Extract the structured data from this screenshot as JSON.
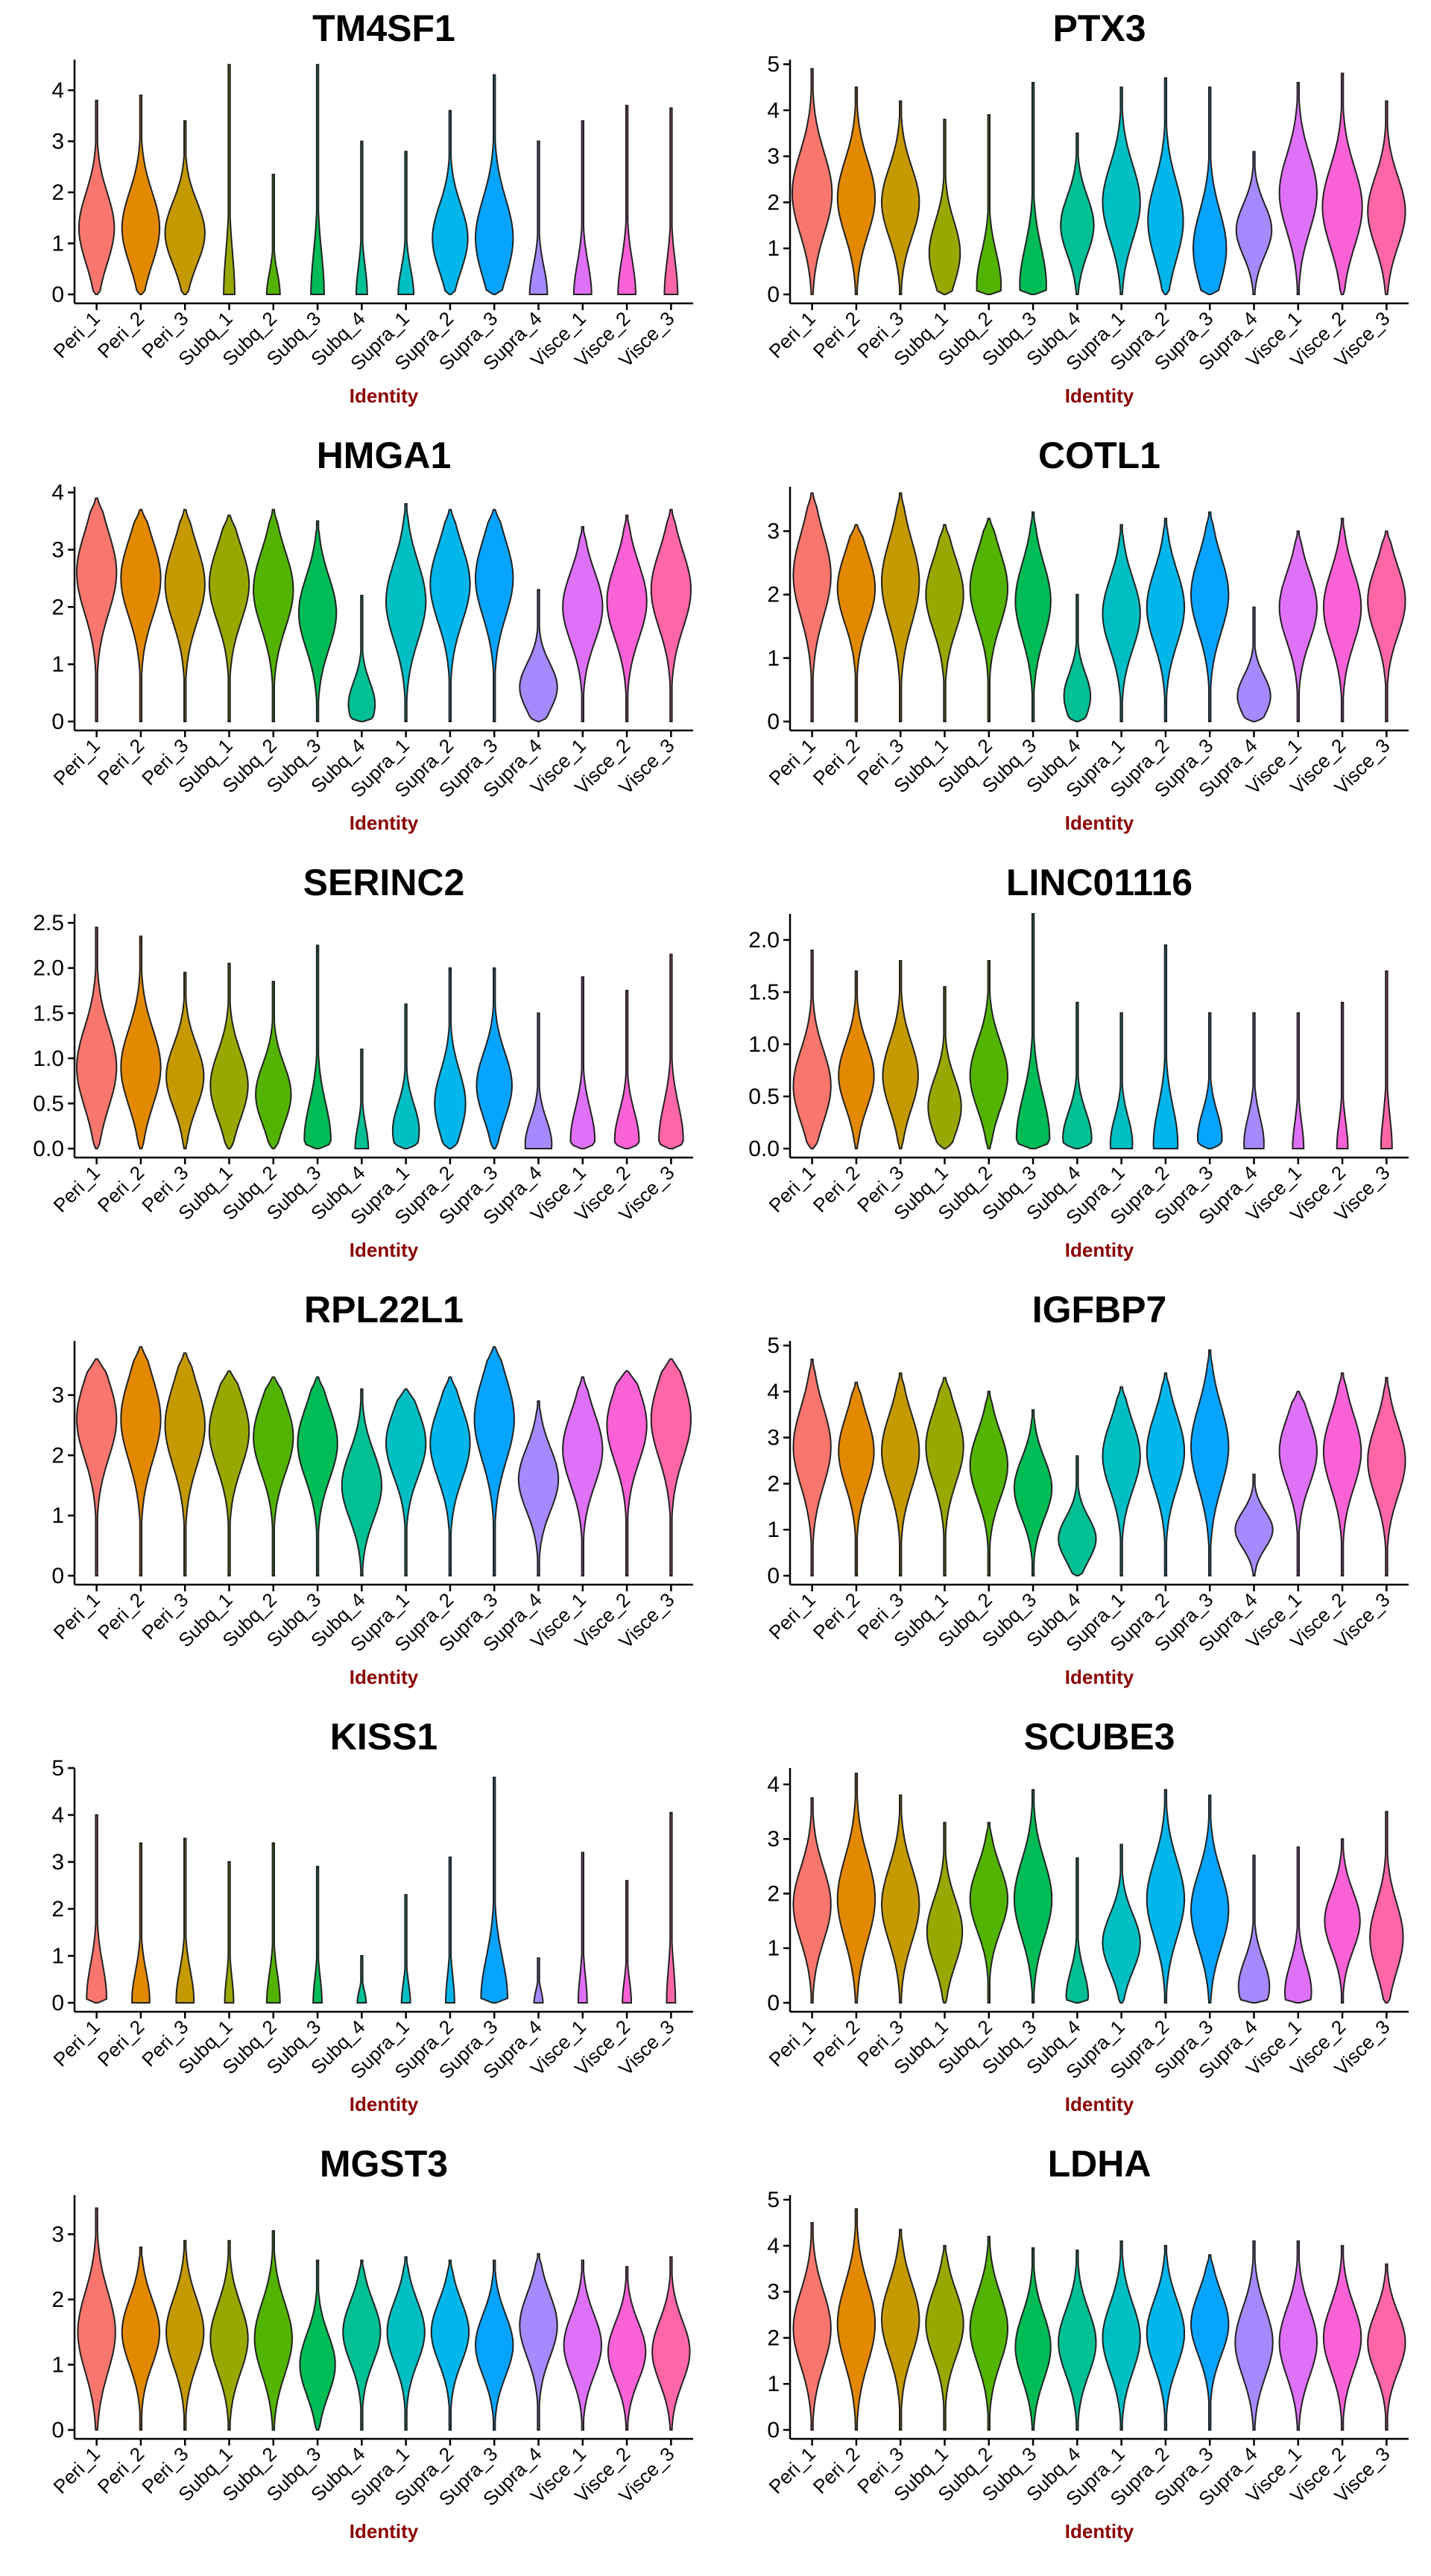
{
  "chart_data": [
    {
      "type": "violin",
      "title": "TM4SF1",
      "xlabel": "Identity",
      "ylim": [
        0,
        4.6
      ],
      "yticks": [
        0,
        1,
        2,
        3,
        4
      ],
      "categories": [
        "Peri_1",
        "Peri_2",
        "Peri_3",
        "Subq_1",
        "Subq_2",
        "Subq_3",
        "Subq_4",
        "Supra_1",
        "Supra_2",
        "Supra_3",
        "Supra_4",
        "Visce_1",
        "Visce_2",
        "Visce_3"
      ],
      "max": [
        3.8,
        3.9,
        3.4,
        4.5,
        2.35,
        4.5,
        3.0,
        2.8,
        3.6,
        4.3,
        3.0,
        3.4,
        3.7,
        3.65
      ],
      "mode": [
        1.3,
        1.3,
        1.2,
        0,
        0,
        0,
        0,
        0,
        1.1,
        1.1,
        0,
        0,
        0,
        0
      ],
      "width": [
        0.8,
        0.85,
        0.9,
        0.25,
        0.3,
        0.3,
        0.25,
        0.35,
        0.8,
        0.85,
        0.4,
        0.4,
        0.4,
        0.3
      ]
    },
    {
      "type": "violin",
      "title": "PTX3",
      "xlabel": "Identity",
      "ylim": [
        0,
        5.1
      ],
      "yticks": [
        0,
        1,
        2,
        3,
        4,
        5
      ],
      "categories": [
        "Peri_1",
        "Peri_2",
        "Peri_3",
        "Subq_1",
        "Subq_2",
        "Subq_3",
        "Subq_4",
        "Supra_1",
        "Supra_2",
        "Supra_3",
        "Supra_4",
        "Visce_1",
        "Visce_2",
        "Visce_3"
      ],
      "max": [
        4.9,
        4.5,
        4.2,
        3.8,
        3.9,
        4.6,
        3.5,
        4.5,
        4.7,
        4.5,
        3.1,
        4.6,
        4.8,
        4.2
      ],
      "mode": [
        2.2,
        2.1,
        2.0,
        0.9,
        0.2,
        0.2,
        1.5,
        2.0,
        1.6,
        1.0,
        1.4,
        2.2,
        1.9,
        1.8
      ],
      "width": [
        0.9,
        0.85,
        0.85,
        0.7,
        0.55,
        0.6,
        0.75,
        0.85,
        0.8,
        0.75,
        0.8,
        0.85,
        0.9,
        0.85
      ]
    },
    {
      "type": "violin",
      "title": "HMGA1",
      "xlabel": "Identity",
      "ylim": [
        0,
        4.1
      ],
      "yticks": [
        0,
        1,
        2,
        3,
        4
      ],
      "categories": [
        "Peri_1",
        "Peri_2",
        "Peri_3",
        "Subq_1",
        "Subq_2",
        "Subq_3",
        "Subq_4",
        "Supra_1",
        "Supra_2",
        "Supra_3",
        "Supra_4",
        "Visce_1",
        "Visce_2",
        "Visce_3"
      ],
      "max": [
        3.9,
        3.7,
        3.7,
        3.6,
        3.7,
        3.5,
        2.2,
        3.8,
        3.7,
        3.7,
        2.3,
        3.4,
        3.6,
        3.7
      ],
      "mode": [
        2.6,
        2.5,
        2.4,
        2.4,
        2.3,
        1.9,
        0.3,
        2.1,
        2.4,
        2.5,
        0.6,
        2.0,
        2.1,
        2.3
      ],
      "width": [
        0.9,
        0.9,
        0.9,
        0.9,
        0.9,
        0.85,
        0.6,
        0.9,
        0.9,
        0.85,
        0.85,
        0.9,
        0.9,
        0.9
      ]
    },
    {
      "type": "violin",
      "title": "COTL1",
      "xlabel": "Identity",
      "ylim": [
        0,
        3.7
      ],
      "yticks": [
        0,
        1,
        2,
        3
      ],
      "categories": [
        "Peri_1",
        "Peri_2",
        "Peri_3",
        "Subq_1",
        "Subq_2",
        "Subq_3",
        "Subq_4",
        "Supra_1",
        "Supra_2",
        "Supra_3",
        "Supra_4",
        "Visce_1",
        "Visce_2",
        "Visce_3"
      ],
      "max": [
        3.6,
        3.1,
        3.6,
        3.1,
        3.2,
        3.3,
        2.0,
        3.1,
        3.2,
        3.3,
        1.8,
        3.0,
        3.2,
        3.0
      ],
      "mode": [
        2.3,
        2.1,
        2.2,
        2.0,
        2.1,
        1.9,
        0.4,
        1.7,
        1.8,
        2.0,
        0.4,
        1.8,
        1.8,
        1.9
      ],
      "width": [
        0.85,
        0.85,
        0.85,
        0.85,
        0.85,
        0.8,
        0.6,
        0.85,
        0.85,
        0.85,
        0.75,
        0.85,
        0.85,
        0.85
      ]
    },
    {
      "type": "violin",
      "title": "SERINC2",
      "xlabel": "Identity",
      "ylim": [
        0,
        2.6
      ],
      "yticks": [
        0,
        0.5,
        1.0,
        1.5,
        2.0,
        2.5
      ],
      "categories": [
        "Peri_1",
        "Peri_2",
        "Peri_3",
        "Subq_1",
        "Subq_2",
        "Subq_3",
        "Subq_4",
        "Supra_1",
        "Supra_2",
        "Supra_3",
        "Supra_4",
        "Visce_1",
        "Visce_2",
        "Visce_3"
      ],
      "max": [
        2.45,
        2.35,
        1.95,
        2.05,
        1.85,
        2.25,
        1.1,
        1.6,
        2.0,
        2.0,
        1.5,
        1.9,
        1.75,
        2.15
      ],
      "mode": [
        0.9,
        0.9,
        0.8,
        0.7,
        0.6,
        0.1,
        0,
        0.2,
        0.5,
        0.7,
        0.05,
        0.1,
        0.1,
        0.1
      ],
      "width": [
        0.9,
        0.9,
        0.85,
        0.85,
        0.8,
        0.6,
        0.3,
        0.6,
        0.7,
        0.8,
        0.6,
        0.55,
        0.55,
        0.55
      ]
    },
    {
      "type": "violin",
      "title": "LINC01116",
      "xlabel": "Identity",
      "ylim": [
        0,
        2.25
      ],
      "yticks": [
        0,
        0.5,
        1.0,
        1.5,
        2.0
      ],
      "categories": [
        "Peri_1",
        "Peri_2",
        "Peri_3",
        "Subq_1",
        "Subq_2",
        "Subq_3",
        "Subq_4",
        "Supra_1",
        "Supra_2",
        "Supra_3",
        "Supra_4",
        "Visce_1",
        "Visce_2",
        "Visce_3"
      ],
      "max": [
        1.9,
        1.7,
        1.8,
        1.55,
        1.8,
        2.25,
        1.4,
        1.3,
        1.95,
        1.3,
        1.3,
        1.3,
        1.4,
        1.7
      ],
      "mode": [
        0.6,
        0.7,
        0.7,
        0.4,
        0.7,
        0.1,
        0.1,
        0.05,
        0.05,
        0.1,
        0.05,
        0,
        0,
        0
      ],
      "width": [
        0.85,
        0.8,
        0.8,
        0.75,
        0.85,
        0.75,
        0.65,
        0.5,
        0.55,
        0.55,
        0.45,
        0.25,
        0.25,
        0.25
      ]
    },
    {
      "type": "violin",
      "title": "RPL22L1",
      "xlabel": "Identity",
      "ylim": [
        0,
        3.9
      ],
      "yticks": [
        0,
        1,
        2,
        3
      ],
      "categories": [
        "Peri_1",
        "Peri_2",
        "Peri_3",
        "Subq_1",
        "Subq_2",
        "Subq_3",
        "Subq_4",
        "Supra_1",
        "Supra_2",
        "Supra_3",
        "Supra_4",
        "Visce_1",
        "Visce_2",
        "Visce_3"
      ],
      "max": [
        3.6,
        3.8,
        3.7,
        3.4,
        3.3,
        3.3,
        3.1,
        3.1,
        3.3,
        3.8,
        2.9,
        3.3,
        3.4,
        3.6
      ],
      "mode": [
        2.6,
        2.6,
        2.5,
        2.4,
        2.3,
        2.2,
        1.5,
        2.2,
        2.2,
        2.6,
        1.6,
        2.1,
        2.5,
        2.6
      ],
      "width": [
        0.9,
        0.9,
        0.9,
        0.9,
        0.9,
        0.9,
        0.9,
        0.9,
        0.9,
        0.9,
        0.9,
        0.9,
        0.9,
        0.9
      ]
    },
    {
      "type": "violin",
      "title": "IGFBP7",
      "xlabel": "Identity",
      "ylim": [
        0,
        5.1
      ],
      "yticks": [
        0,
        1,
        2,
        3,
        4,
        5
      ],
      "categories": [
        "Peri_1",
        "Peri_2",
        "Peri_3",
        "Subq_1",
        "Subq_2",
        "Subq_3",
        "Subq_4",
        "Supra_1",
        "Supra_2",
        "Supra_3",
        "Supra_4",
        "Visce_1",
        "Visce_2",
        "Visce_3"
      ],
      "max": [
        4.7,
        4.2,
        4.4,
        4.3,
        4.0,
        3.6,
        2.6,
        4.1,
        4.4,
        4.9,
        2.2,
        4.0,
        4.4,
        4.3
      ],
      "mode": [
        2.8,
        2.7,
        2.7,
        2.8,
        2.4,
        1.9,
        0.8,
        2.6,
        2.7,
        2.8,
        1.0,
        2.7,
        2.7,
        2.5
      ],
      "width": [
        0.85,
        0.8,
        0.85,
        0.85,
        0.85,
        0.85,
        0.85,
        0.85,
        0.85,
        0.85,
        0.85,
        0.85,
        0.85,
        0.85
      ]
    },
    {
      "type": "violin",
      "title": "KISS1",
      "xlabel": "Identity",
      "ylim": [
        0,
        5
      ],
      "yticks": [
        0,
        1,
        2,
        3,
        4,
        5
      ],
      "categories": [
        "Peri_1",
        "Peri_2",
        "Peri_3",
        "Subq_1",
        "Subq_2",
        "Subq_3",
        "Subq_4",
        "Supra_1",
        "Supra_2",
        "Supra_3",
        "Supra_4",
        "Visce_1",
        "Visce_2",
        "Visce_3"
      ],
      "max": [
        4.0,
        3.4,
        3.5,
        3.0,
        3.4,
        2.9,
        1.0,
        2.3,
        3.1,
        4.8,
        0.95,
        3.2,
        2.6,
        4.05
      ],
      "mode": [
        0.1,
        0.05,
        0.05,
        0,
        0,
        0,
        0,
        0,
        0,
        0.1,
        0,
        0,
        0,
        0
      ],
      "width": [
        0.45,
        0.4,
        0.4,
        0.2,
        0.3,
        0.2,
        0.2,
        0.2,
        0.2,
        0.6,
        0.2,
        0.2,
        0.2,
        0.2
      ]
    },
    {
      "type": "violin",
      "title": "SCUBE3",
      "xlabel": "Identity",
      "ylim": [
        0,
        4.3
      ],
      "yticks": [
        0,
        1,
        2,
        3,
        4
      ],
      "categories": [
        "Peri_1",
        "Peri_2",
        "Peri_3",
        "Subq_1",
        "Subq_2",
        "Subq_3",
        "Subq_4",
        "Supra_1",
        "Supra_2",
        "Supra_3",
        "Supra_4",
        "Visce_1",
        "Visce_2",
        "Visce_3"
      ],
      "max": [
        3.75,
        4.2,
        3.8,
        3.3,
        3.3,
        3.9,
        2.65,
        2.9,
        3.9,
        3.8,
        2.7,
        2.85,
        3.0,
        3.5
      ],
      "mode": [
        1.8,
        1.9,
        1.8,
        1.3,
        1.9,
        1.9,
        0.1,
        1.1,
        1.9,
        1.7,
        0.3,
        0.2,
        1.5,
        1.2
      ],
      "width": [
        0.85,
        0.85,
        0.85,
        0.8,
        0.85,
        0.85,
        0.5,
        0.85,
        0.85,
        0.85,
        0.7,
        0.6,
        0.8,
        0.75
      ]
    },
    {
      "type": "violin",
      "title": "MGST3",
      "xlabel": "Identity",
      "ylim": [
        0,
        3.6
      ],
      "yticks": [
        0,
        1,
        2,
        3
      ],
      "categories": [
        "Peri_1",
        "Peri_2",
        "Peri_3",
        "Subq_1",
        "Subq_2",
        "Subq_3",
        "Subq_4",
        "Supra_1",
        "Supra_2",
        "Supra_3",
        "Supra_4",
        "Visce_1",
        "Visce_2",
        "Visce_3"
      ],
      "max": [
        3.4,
        2.8,
        2.9,
        2.9,
        3.05,
        2.6,
        2.6,
        2.65,
        2.6,
        2.6,
        2.7,
        2.6,
        2.5,
        2.65
      ],
      "mode": [
        1.5,
        1.5,
        1.5,
        1.4,
        1.4,
        1.0,
        1.5,
        1.5,
        1.5,
        1.3,
        1.6,
        1.3,
        1.2,
        1.2
      ],
      "width": [
        0.85,
        0.85,
        0.85,
        0.85,
        0.85,
        0.8,
        0.85,
        0.85,
        0.85,
        0.85,
        0.85,
        0.85,
        0.85,
        0.85
      ]
    },
    {
      "type": "violin",
      "title": "LDHA",
      "xlabel": "Identity",
      "ylim": [
        0,
        5.1
      ],
      "yticks": [
        0,
        1,
        2,
        3,
        4,
        5
      ],
      "categories": [
        "Peri_1",
        "Peri_2",
        "Peri_3",
        "Subq_1",
        "Subq_2",
        "Subq_3",
        "Subq_4",
        "Supra_1",
        "Supra_2",
        "Supra_3",
        "Supra_4",
        "Visce_1",
        "Visce_2",
        "Visce_3"
      ],
      "max": [
        4.5,
        4.8,
        4.35,
        4.0,
        4.2,
        3.95,
        3.9,
        4.1,
        4.0,
        3.8,
        4.1,
        4.1,
        4.0,
        3.6
      ],
      "mode": [
        2.2,
        2.3,
        2.4,
        2.3,
        2.2,
        1.8,
        1.9,
        2.0,
        2.1,
        2.3,
        1.9,
        1.9,
        2.0,
        1.9
      ],
      "width": [
        0.85,
        0.85,
        0.85,
        0.85,
        0.85,
        0.8,
        0.85,
        0.85,
        0.85,
        0.85,
        0.85,
        0.85,
        0.85,
        0.85
      ]
    }
  ],
  "colors": [
    "#F8766D",
    "#E38900",
    "#C49A00",
    "#99A800",
    "#53B400",
    "#00BC56",
    "#00C094",
    "#00BFC4",
    "#00B6EB",
    "#06A4FF",
    "#A58AFF",
    "#DF70F8",
    "#FB61D7",
    "#FF66A8"
  ]
}
